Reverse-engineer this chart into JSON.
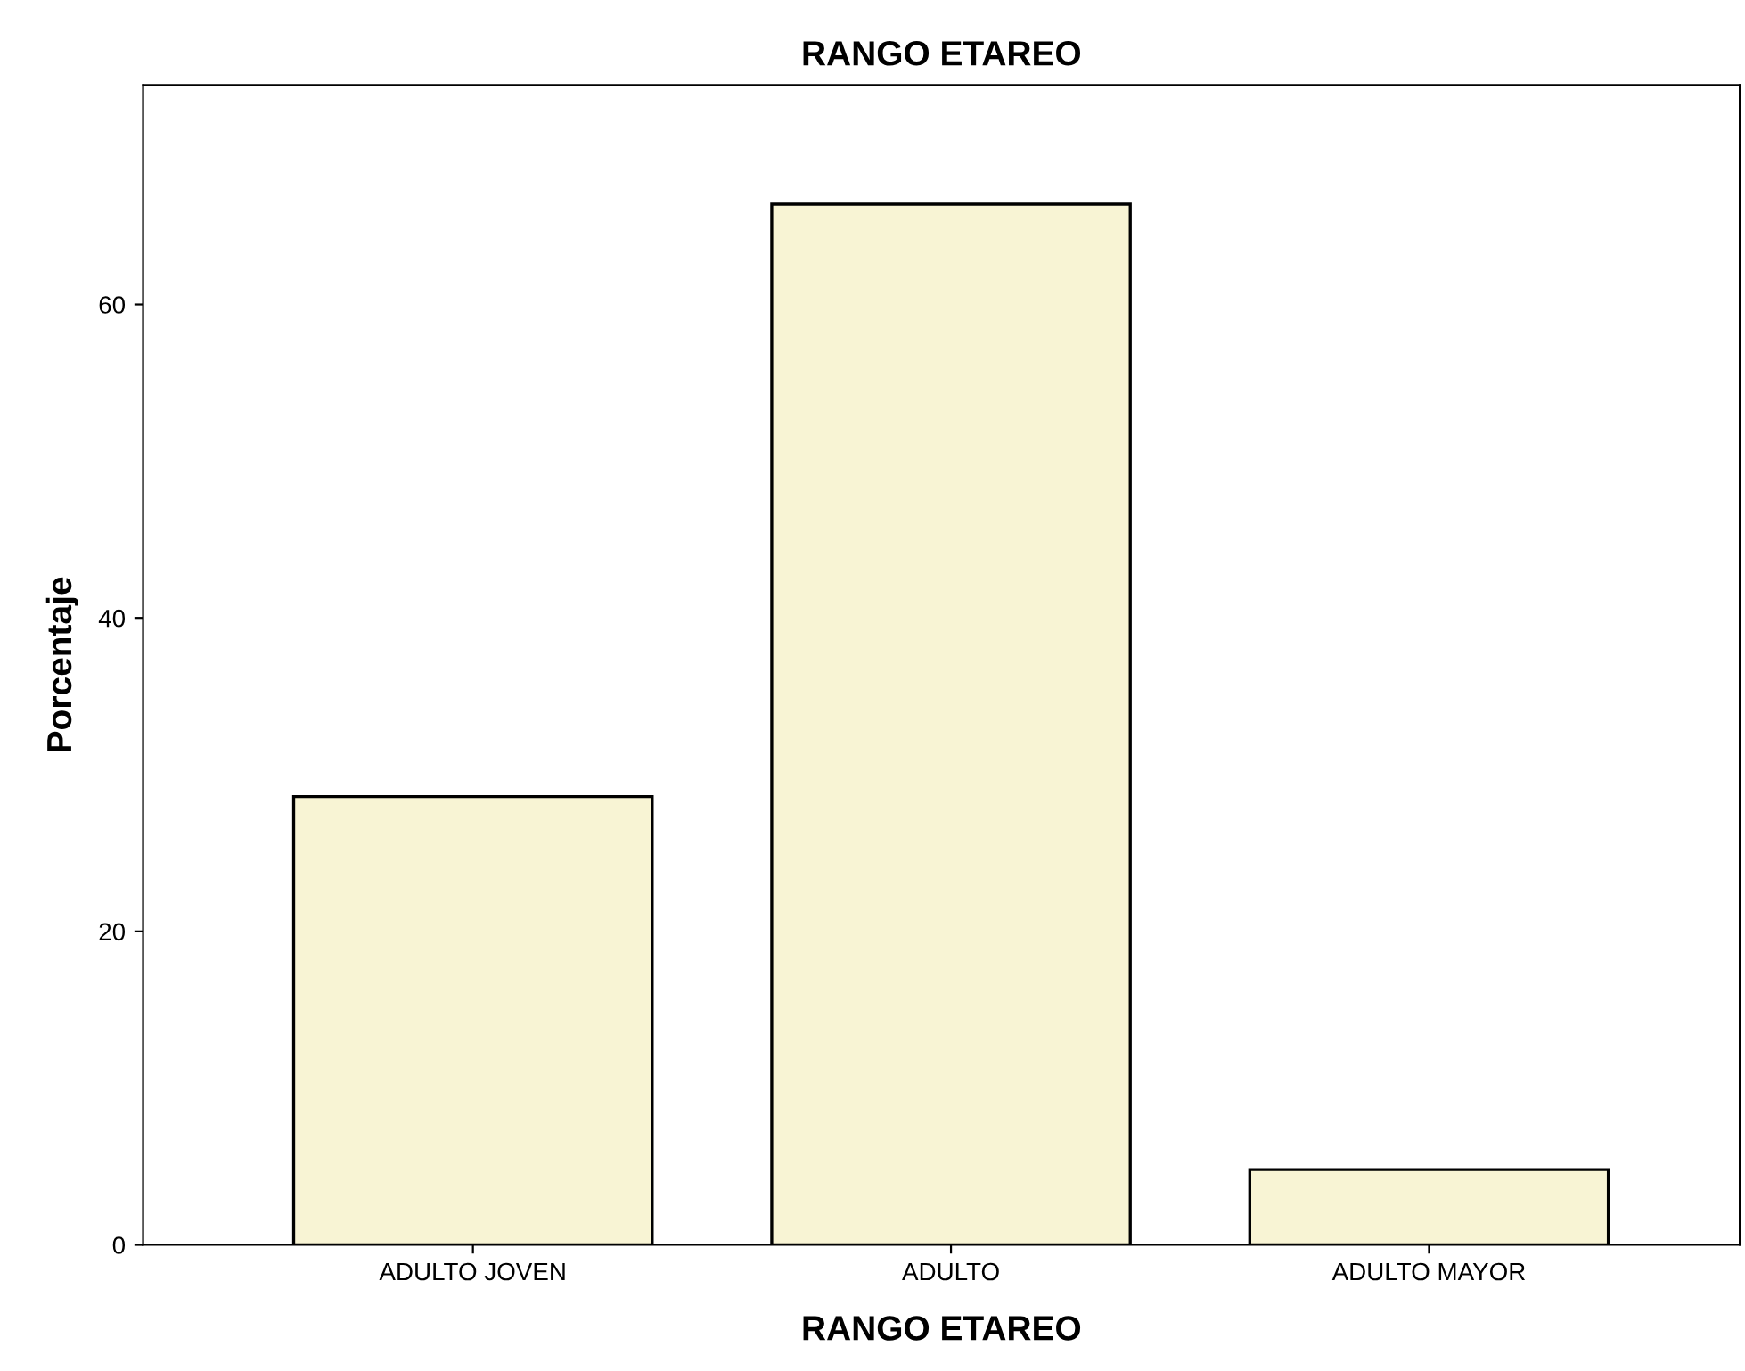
{
  "chart_data": {
    "type": "bar",
    "title": "RANGO ETAREO",
    "xlabel": "RANGO ETAREO",
    "ylabel": "Porcentaje",
    "categories": [
      "ADULTO JOVEN",
      "ADULTO",
      "ADULTO MAYOR"
    ],
    "values": [
      28.6,
      66.4,
      4.8
    ],
    "color": "#f8f4d4",
    "ylim": [
      0,
      74
    ],
    "yticks": [
      0,
      20,
      40,
      60
    ],
    "grid": false,
    "legend": false
  }
}
